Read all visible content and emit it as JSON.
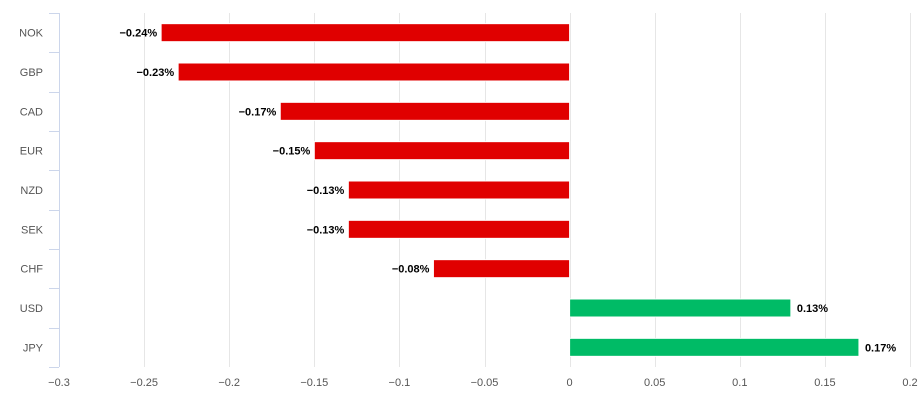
{
  "chart_data": {
    "type": "bar",
    "orientation": "horizontal",
    "categories": [
      "NOK",
      "GBP",
      "CAD",
      "EUR",
      "NZD",
      "SEK",
      "CHF",
      "USD",
      "JPY"
    ],
    "values": [
      -0.24,
      -0.23,
      -0.17,
      -0.15,
      -0.13,
      -0.13,
      -0.08,
      0.13,
      0.17
    ],
    "data_labels": [
      "−0.24%",
      "−0.23%",
      "−0.17%",
      "−0.15%",
      "−0.13%",
      "−0.13%",
      "−0.08%",
      "0.13%",
      "0.17%"
    ],
    "xlim": [
      -0.3,
      0.2
    ],
    "x_ticks": [
      -0.3,
      -0.25,
      -0.2,
      -0.15,
      -0.1,
      -0.05,
      0,
      0.05,
      0.1,
      0.15,
      0.2
    ],
    "x_tick_labels": [
      "−0.3",
      "−0.25",
      "−0.2",
      "−0.15",
      "−0.1",
      "−0.05",
      "0",
      "0.05",
      "0.1",
      "0.15",
      "0.2"
    ],
    "grid": true,
    "colors": {
      "negative": "#e00000",
      "positive": "#00bb66",
      "grid": "#e6e6e6",
      "axis": "#ccd6eb"
    },
    "title": "",
    "xlabel": "",
    "ylabel": ""
  }
}
